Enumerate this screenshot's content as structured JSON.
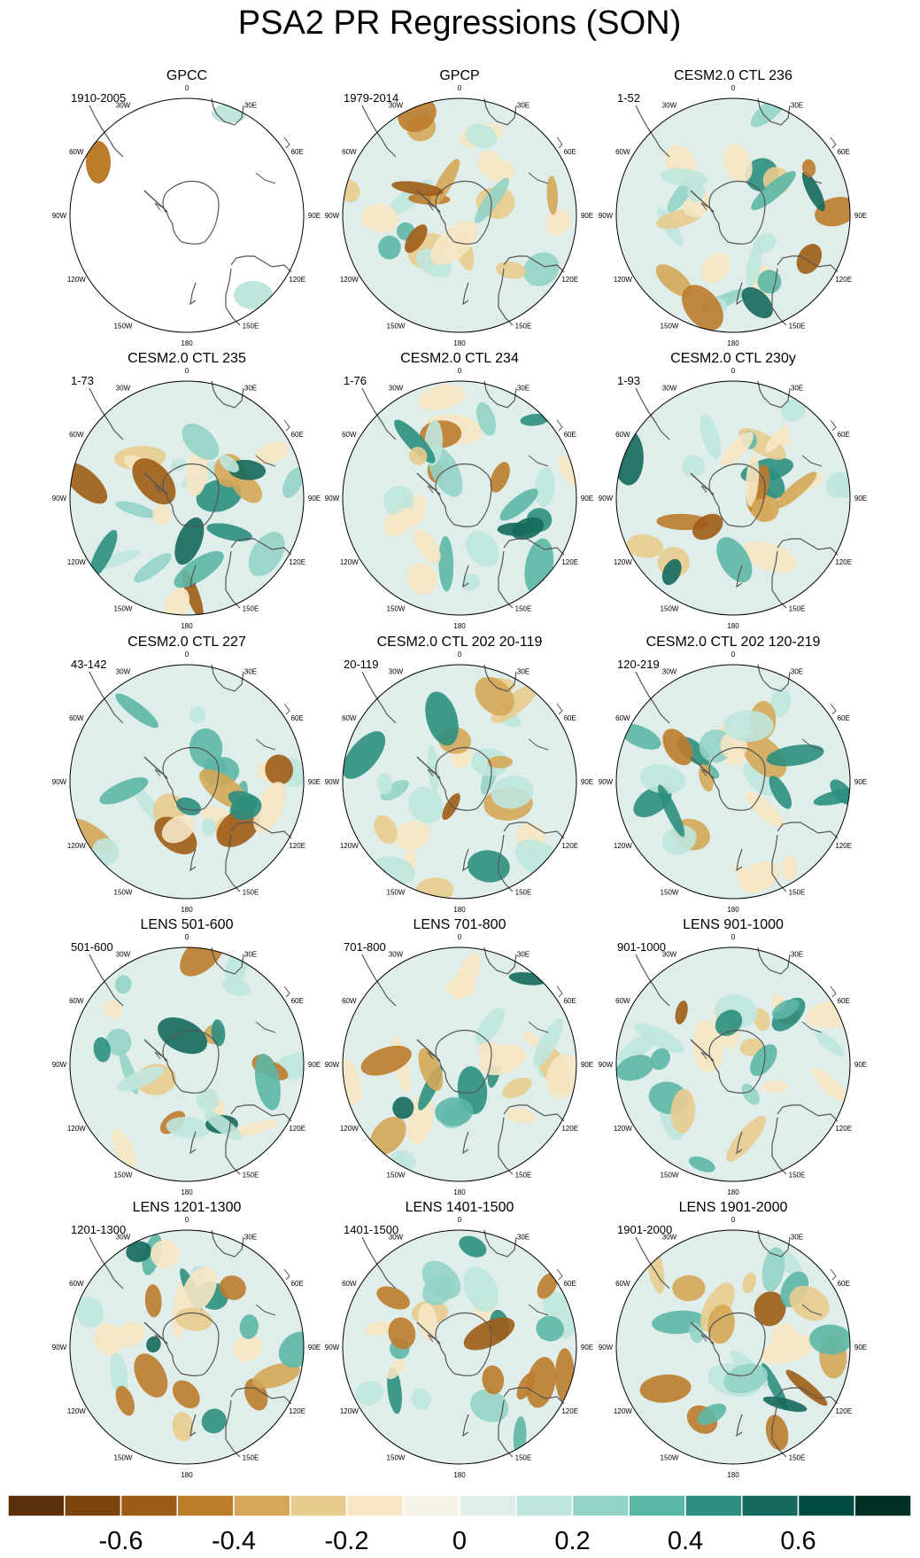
{
  "chart_data": {
    "type": "heatmap",
    "title": "PSA2 PR Regressions (SON)",
    "projection": "South polar stereographic",
    "longitude_labels": [
      "0",
      "30E",
      "60E",
      "90E",
      "120E",
      "150E",
      "180",
      "150W",
      "120W",
      "90W",
      "60W",
      "30W"
    ],
    "panels": [
      {
        "title": "GPCC",
        "period": "1910-2005",
        "coverage": "land-only"
      },
      {
        "title": "GPCP",
        "period": "1979-2014",
        "coverage": "global"
      },
      {
        "title": "CESM2.0 CTL 236",
        "period": "1-52",
        "coverage": "global"
      },
      {
        "title": "CESM2.0 CTL 235",
        "period": "1-73",
        "coverage": "global"
      },
      {
        "title": "CESM2.0 CTL 234",
        "period": "1-76",
        "coverage": "global"
      },
      {
        "title": "CESM2.0 CTL 230y",
        "period": "1-93",
        "coverage": "global"
      },
      {
        "title": "CESM2.0 CTL 227",
        "period": "43-142",
        "coverage": "global"
      },
      {
        "title": "CESM2.0 CTL 202 20-119",
        "period": "20-119",
        "coverage": "global"
      },
      {
        "title": "CESM2.0 CTL 202 120-219",
        "period": "120-219",
        "coverage": "global"
      },
      {
        "title": "LENS 501-600",
        "period": "501-600",
        "coverage": "global"
      },
      {
        "title": "LENS 701-800",
        "period": "701-800",
        "coverage": "global"
      },
      {
        "title": "LENS 901-1000",
        "period": "901-1000",
        "coverage": "global"
      },
      {
        "title": "LENS 1201-1300",
        "period": "1201-1300",
        "coverage": "global"
      },
      {
        "title": "LENS 1401-1500",
        "period": "1401-1500",
        "coverage": "global"
      },
      {
        "title": "LENS 1901-2000",
        "period": "1901-2000",
        "coverage": "global"
      }
    ],
    "colorbar": {
      "levels": [
        -0.7,
        -0.6,
        -0.5,
        -0.4,
        -0.3,
        -0.2,
        -0.1,
        0.0,
        0.1,
        0.2,
        0.3,
        0.4,
        0.5,
        0.6,
        0.7
      ],
      "tick_labels": [
        "-0.6",
        "-0.4",
        "-0.2",
        "0",
        "0.2",
        "0.4",
        "0.6"
      ],
      "tick_values": [
        -0.6,
        -0.4,
        -0.2,
        0,
        0.2,
        0.4,
        0.6
      ],
      "colors": [
        "#5a3008",
        "#7c430d",
        "#9e5c16",
        "#bd7b2c",
        "#d5a759",
        "#e8cc8f",
        "#f6e6c4",
        "#f5f2e8",
        "#e0eeeb",
        "#bfe5dd",
        "#92d3c5",
        "#5db7a6",
        "#2c8f80",
        "#15695d",
        "#004a40",
        "#003025"
      ]
    }
  }
}
